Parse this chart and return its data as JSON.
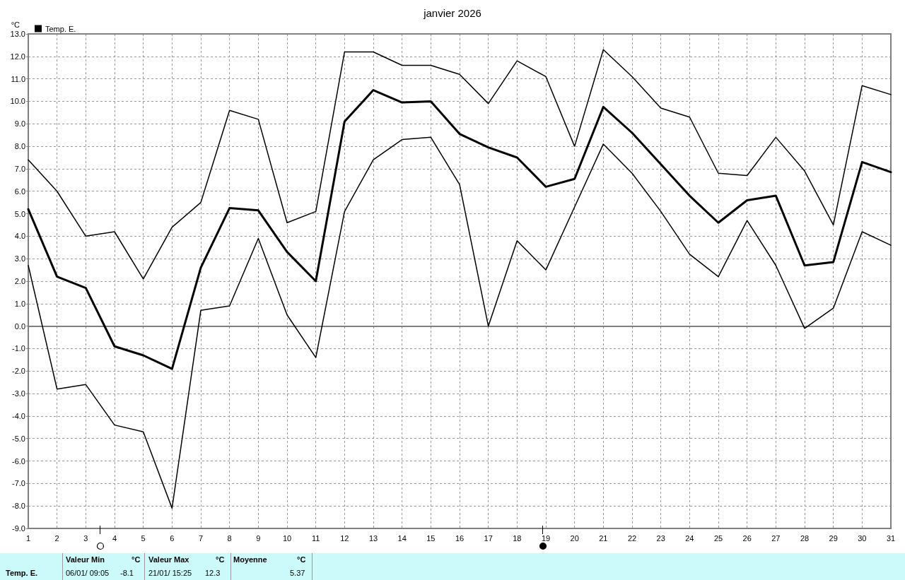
{
  "chart_data": {
    "type": "line",
    "title": "janvier 2026",
    "ylabel": "°C",
    "x": [
      1,
      2,
      3,
      4,
      5,
      6,
      7,
      8,
      9,
      10,
      11,
      12,
      13,
      14,
      15,
      16,
      17,
      18,
      19,
      20,
      21,
      22,
      23,
      24,
      25,
      26,
      27,
      28,
      29,
      30,
      31
    ],
    "series": [
      {
        "color": "#000000",
        "values": [
          7.4,
          6.0,
          4.0,
          4.2,
          2.1,
          4.4,
          5.5,
          9.6,
          9.2,
          4.6,
          5.1,
          12.2,
          12.2,
          11.6,
          11.6,
          11.2,
          9.9,
          11.8,
          11.1,
          8.0,
          12.3,
          11.1,
          9.7,
          9.3,
          6.8,
          6.7,
          8.4,
          6.9,
          4.5,
          10.7,
          10.3
        ]
      },
      {
        "name": "Temp. E.",
        "color": "#000000",
        "values": [
          5.2,
          2.2,
          1.7,
          -0.9,
          -1.3,
          -1.9,
          2.6,
          5.25,
          5.15,
          3.3,
          2.0,
          9.1,
          10.5,
          9.95,
          10.0,
          8.55,
          7.95,
          7.5,
          6.2,
          6.55,
          9.75,
          8.6,
          7.2,
          5.8,
          4.6,
          5.6,
          5.8,
          2.7,
          2.85,
          7.3,
          6.85
        ]
      },
      {
        "color": "#000000",
        "values": [
          2.7,
          -2.8,
          -2.6,
          -4.4,
          -4.7,
          -8.1,
          0.7,
          0.9,
          3.9,
          0.5,
          -1.4,
          5.1,
          7.4,
          8.3,
          8.4,
          6.3,
          0.0,
          3.8,
          2.5,
          5.3,
          8.1,
          6.8,
          5.1,
          3.2,
          2.2,
          4.7,
          2.7,
          -0.1,
          0.8,
          4.2,
          3.6
        ]
      }
    ],
    "xlim": [
      1,
      31
    ],
    "xticks": [
      1,
      2,
      3,
      4,
      5,
      6,
      7,
      8,
      9,
      10,
      11,
      12,
      13,
      14,
      15,
      16,
      17,
      18,
      19,
      20,
      21,
      22,
      23,
      24,
      25,
      26,
      27,
      28,
      29,
      30,
      31
    ],
    "ylim": [
      -9,
      13
    ],
    "yticks": [
      {
        "value": -9,
        "label": "-9.0"
      },
      {
        "value": -8,
        "label": "-8.0"
      },
      {
        "value": -7,
        "label": "-7.0"
      },
      {
        "value": -6,
        "label": "-6.0"
      },
      {
        "value": -5,
        "label": "-5.0"
      },
      {
        "value": -4,
        "label": "-4.0"
      },
      {
        "value": -3,
        "label": "-3.0"
      },
      {
        "value": -2,
        "label": "-2.0"
      },
      {
        "value": -1,
        "label": "-1.0"
      },
      {
        "value": 0,
        "label": "0.0"
      },
      {
        "value": 1,
        "label": "1.0"
      },
      {
        "value": 2,
        "label": "2.0"
      },
      {
        "value": 3,
        "label": "3.0"
      },
      {
        "value": 4,
        "label": "4.0"
      },
      {
        "value": 5,
        "label": "5.0"
      },
      {
        "value": 6,
        "label": "6.0"
      },
      {
        "value": 7,
        "label": "7.0"
      },
      {
        "value": 8,
        "label": "8.0"
      },
      {
        "value": 9,
        "label": "9.0"
      },
      {
        "value": 10,
        "label": "10.0"
      },
      {
        "value": 11,
        "label": "11.0"
      },
      {
        "value": 12,
        "label": "12.0"
      },
      {
        "value": 13,
        "label": "13.0"
      }
    ],
    "grid": true,
    "legend": "top left",
    "marker": "none",
    "line_style": "solid",
    "annotations": [
      "Temp. E.",
      "Valeur Min",
      "°C",
      "06/01/ 09:05",
      "-8.1",
      "Valeur Max",
      "°C",
      "21/01/ 15:25",
      "12.3",
      "Moyenne",
      "°C",
      "5.37"
    ]
  }
}
